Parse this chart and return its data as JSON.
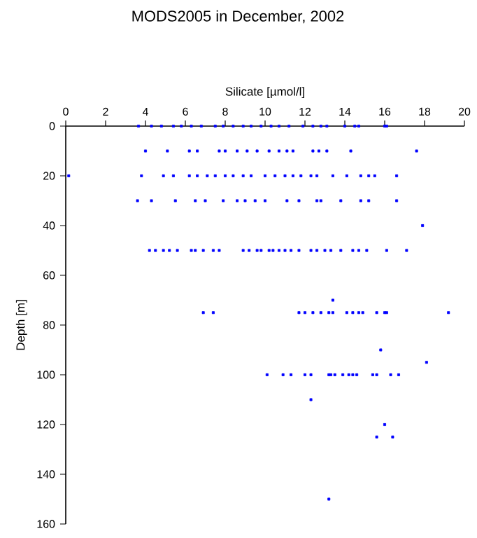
{
  "chart_data": {
    "type": "scatter",
    "title": "MODS2005 in December, 2002",
    "xlabel": "Silicate [µmol/l]",
    "ylabel": "Depth [m]",
    "xlim": [
      0,
      20
    ],
    "xticks": [
      0,
      2,
      4,
      6,
      8,
      10,
      12,
      14,
      16,
      18,
      20
    ],
    "ylim": [
      160,
      0
    ],
    "yticks": [
      0,
      20,
      40,
      60,
      80,
      100,
      120,
      140,
      160
    ],
    "marker": "square",
    "grid": false,
    "series": [
      {
        "color": "#0000ff",
        "x": [
          3.65,
          4.3,
          4.8,
          5.4,
          5.8,
          6.3,
          6.8,
          7.5,
          7.9,
          8.4,
          8.9,
          9.3,
          9.8,
          10.3,
          10.7,
          11.2,
          11.9,
          12.4,
          12.8,
          13.1,
          14.0,
          14.5,
          14.7,
          16.0,
          16.1,
          4.0,
          5.1,
          6.2,
          6.6,
          7.7,
          8.0,
          8.6,
          9.1,
          9.6,
          10.2,
          10.7,
          11.1,
          11.4,
          12.4,
          12.7,
          13.1,
          14.3,
          17.6,
          0.15,
          3.8,
          4.9,
          5.4,
          6.2,
          6.6,
          7.1,
          7.5,
          8.0,
          8.4,
          8.9,
          9.3,
          10.0,
          10.5,
          11.0,
          11.4,
          11.8,
          12.3,
          12.6,
          13.4,
          14.1,
          14.8,
          15.2,
          15.5,
          16.6,
          3.6,
          4.3,
          5.5,
          6.5,
          7.0,
          7.9,
          8.6,
          9.0,
          9.5,
          10.0,
          11.1,
          11.7,
          12.6,
          12.8,
          13.8,
          14.8,
          15.2,
          16.6,
          17.9,
          4.2,
          4.5,
          4.9,
          5.2,
          5.6,
          6.3,
          6.5,
          6.9,
          7.4,
          7.7,
          8.9,
          9.2,
          9.6,
          9.8,
          10.2,
          10.4,
          10.7,
          11.0,
          11.3,
          11.7,
          12.3,
          12.6,
          13.0,
          13.3,
          13.8,
          14.4,
          14.7,
          15.1,
          16.1,
          17.1,
          13.4,
          6.9,
          7.4,
          11.7,
          12.0,
          12.4,
          12.8,
          13.2,
          13.4,
          14.1,
          14.4,
          14.7,
          14.9,
          15.6,
          16.0,
          16.1,
          19.2,
          15.8,
          18.1,
          10.1,
          10.9,
          11.3,
          12.0,
          12.3,
          13.2,
          13.3,
          13.5,
          13.9,
          14.2,
          14.4,
          14.6,
          15.4,
          15.6,
          16.3,
          16.7,
          12.3,
          16.0,
          15.6,
          16.4,
          13.2
        ],
        "values": [
          0,
          0,
          0,
          0,
          0,
          0,
          0,
          0,
          0,
          0,
          0,
          0,
          0,
          0,
          0,
          0,
          0,
          0,
          0,
          0,
          0,
          0,
          0,
          0,
          0,
          10,
          10,
          10,
          10,
          10,
          10,
          10,
          10,
          10,
          10,
          10,
          10,
          10,
          10,
          10,
          10,
          10,
          10,
          20,
          20,
          20,
          20,
          20,
          20,
          20,
          20,
          20,
          20,
          20,
          20,
          20,
          20,
          20,
          20,
          20,
          20,
          20,
          20,
          20,
          20,
          20,
          20,
          20,
          30,
          30,
          30,
          30,
          30,
          30,
          30,
          30,
          30,
          30,
          30,
          30,
          30,
          30,
          30,
          30,
          30,
          30,
          40,
          50,
          50,
          50,
          50,
          50,
          50,
          50,
          50,
          50,
          50,
          50,
          50,
          50,
          50,
          50,
          50,
          50,
          50,
          50,
          50,
          50,
          50,
          50,
          50,
          50,
          50,
          50,
          50,
          50,
          50,
          70,
          75,
          75,
          75,
          75,
          75,
          75,
          75,
          75,
          75,
          75,
          75,
          75,
          75,
          75,
          75,
          75,
          90,
          95,
          100,
          100,
          100,
          100,
          100,
          100,
          100,
          100,
          100,
          100,
          100,
          100,
          100,
          100,
          100,
          100,
          110,
          120,
          125,
          125,
          150
        ]
      }
    ]
  }
}
